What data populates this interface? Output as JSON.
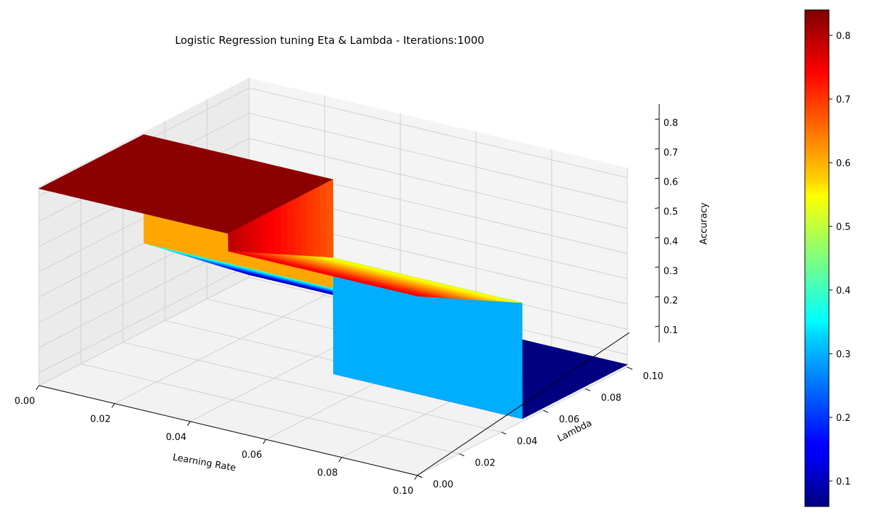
{
  "chart_data": {
    "type": "surface3d",
    "title": "Logistic Regression tuning Eta & Lambda - Iterations:1000",
    "xlabel": "Learning Rate",
    "ylabel": "Lambda",
    "zlabel": "Accuracy",
    "xlim": [
      0.0,
      0.1
    ],
    "ylim": [
      0.0,
      0.1
    ],
    "zlim": [
      0.05,
      0.84
    ],
    "x_ticks": [
      "0.00",
      "0.02",
      "0.04",
      "0.06",
      "0.08",
      "0.10"
    ],
    "y_ticks": [
      "0.00",
      "0.02",
      "0.04",
      "0.06",
      "0.08",
      "0.10"
    ],
    "z_ticks": [
      "0.1",
      "0.2",
      "0.3",
      "0.4",
      "0.5",
      "0.6",
      "0.7",
      "0.8"
    ],
    "colormap": "jet",
    "colorbar": {
      "range": [
        0.06,
        0.84
      ],
      "ticks": [
        "0.1",
        "0.2",
        "0.3",
        "0.4",
        "0.5",
        "0.6",
        "0.7",
        "0.8"
      ]
    },
    "surface": {
      "x": [
        0.0,
        0.05,
        0.0501,
        0.1
      ],
      "y": [
        0.0,
        0.0499,
        0.05,
        0.1
      ],
      "z": [
        [
          0.83,
          0.83,
          0.76,
          0.76
        ],
        [
          0.83,
          0.83,
          0.52,
          0.52
        ],
        [
          0.4,
          0.4,
          0.06,
          0.06
        ],
        [
          0.06,
          0.06,
          0.06,
          0.06
        ]
      ]
    },
    "grid": true
  }
}
